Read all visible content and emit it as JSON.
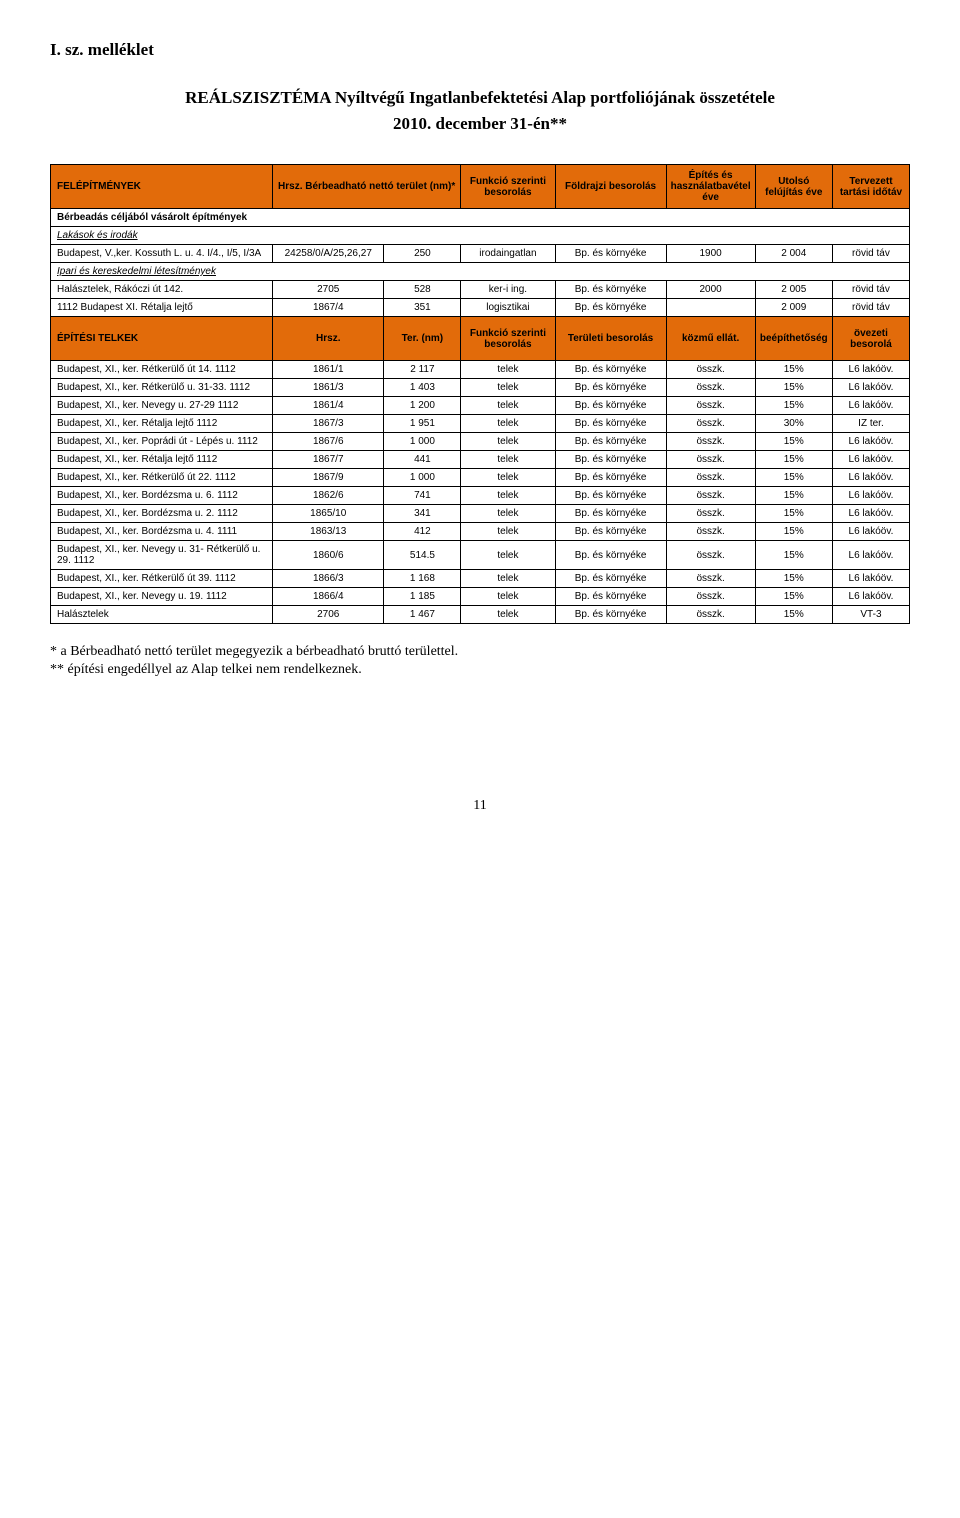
{
  "doc": {
    "header": "I. sz. melléklet",
    "title_line1": "REÁLSZISZTÉMA Nyíltvégű Ingatlanbefektetési Alap portfoliójának összetétele",
    "title_line2": "2010. december 31-én**"
  },
  "colors": {
    "header_bg": "#e26b0a",
    "border": "#000000",
    "text": "#000000",
    "page_bg": "#ffffff"
  },
  "table1": {
    "headers": [
      "FELÉPÍTMÉNYEK",
      "Hrsz. Bérbeadható nettó terület (nm)*",
      "Funkció szerinti besorolás",
      "Földrajzi besorolás",
      "Építés és használatbavétel éve",
      "Utolsó felújítás éve",
      "Tervezett tartási időtáv"
    ],
    "section1": "Bérbeadás céljából vásárolt építmények",
    "section1a": "Lakások és irodák",
    "row1": {
      "name": "Budapest, V.,ker. Kossuth L. u. 4. I/4., I/5, I/3A",
      "hrsz": "24258/0/A/25,26,27",
      "area": "250",
      "func": "irodaingatlan",
      "geo": "Bp. és környéke",
      "year": "1900",
      "renov": "2 004",
      "term": "rövid táv"
    },
    "section1b": "Ipari és kereskedelmi létesítmények",
    "row2": {
      "name": "Halásztelek, Rákóczi út 142.",
      "hrsz": "2705",
      "area": "528",
      "func": "ker-i ing.",
      "geo": "Bp. és környéke",
      "year": "2000",
      "renov": "2 005",
      "term": "rövid táv"
    },
    "row3": {
      "name": "1112 Budapest XI. Rétalja lejtő",
      "hrsz": "1867/4",
      "area": "351",
      "func": "logisztikai",
      "geo": "Bp. és környéke",
      "year": "",
      "renov": "2 009",
      "term": "rövid táv"
    }
  },
  "table2": {
    "headers": [
      "ÉPÍTÉSI TELKEK",
      "Hrsz.",
      "Ter. (nm)",
      "Funkció szerinti besorolás",
      "Területi besorolás",
      "közmű ellát.",
      "beépíthetőség",
      "övezeti besorolá"
    ],
    "rows": [
      {
        "name": "Budapest, XI., ker. Rétkerülő út 14. 1112",
        "hrsz": "1861/1",
        "area": "2 117",
        "func": "telek",
        "geo": "Bp. és környéke",
        "util": "összk.",
        "build": "15%",
        "zone": "L6 lakóöv."
      },
      {
        "name": "Budapest, XI., ker. Rétkerülő u. 31-33. 1112",
        "hrsz": "1861/3",
        "area": "1 403",
        "func": "telek",
        "geo": "Bp. és környéke",
        "util": "összk.",
        "build": "15%",
        "zone": "L6 lakóöv."
      },
      {
        "name": "Budapest, XI., ker. Nevegy u. 27-29 1112",
        "hrsz": "1861/4",
        "area": "1 200",
        "func": "telek",
        "geo": "Bp. és környéke",
        "util": "összk.",
        "build": "15%",
        "zone": "L6 lakóöv."
      },
      {
        "name": "Budapest, XI., ker. Rétalja lejtő 1112",
        "hrsz": "1867/3",
        "area": "1 951",
        "func": "telek",
        "geo": "Bp. és környéke",
        "util": "összk.",
        "build": "30%",
        "zone": "IZ ter."
      },
      {
        "name": "Budapest, XI., ker. Poprádi út - Lépés u. 1112",
        "hrsz": "1867/6",
        "area": "1 000",
        "func": "telek",
        "geo": "Bp. és környéke",
        "util": "összk.",
        "build": "15%",
        "zone": "L6 lakóöv."
      },
      {
        "name": "Budapest, XI., ker. Rétalja lejtő 1112",
        "hrsz": "1867/7",
        "area": "441",
        "func": "telek",
        "geo": "Bp. és környéke",
        "util": "összk.",
        "build": "15%",
        "zone": "L6 lakóöv."
      },
      {
        "name": "Budapest, XI., ker. Rétkerülő út 22. 1112",
        "hrsz": "1867/9",
        "area": "1 000",
        "func": "telek",
        "geo": "Bp. és környéke",
        "util": "összk.",
        "build": "15%",
        "zone": "L6 lakóöv."
      },
      {
        "name": "Budapest, XI., ker. Bordézsma u. 6. 1112",
        "hrsz": "1862/6",
        "area": "741",
        "func": "telek",
        "geo": "Bp. és környéke",
        "util": "összk.",
        "build": "15%",
        "zone": "L6 lakóöv."
      },
      {
        "name": "Budapest, XI., ker. Bordézsma u. 2. 1112",
        "hrsz": "1865/10",
        "area": "341",
        "func": "telek",
        "geo": "Bp. és környéke",
        "util": "összk.",
        "build": "15%",
        "zone": "L6 lakóöv."
      },
      {
        "name": "Budapest, XI., ker. Bordézsma u. 4. 1111",
        "hrsz": "1863/13",
        "area": "412",
        "func": "telek",
        "geo": "Bp. és környéke",
        "util": "összk.",
        "build": "15%",
        "zone": "L6 lakóöv."
      },
      {
        "name": "Budapest, XI., ker. Nevegy u. 31- Rétkerülő u. 29. 1112",
        "hrsz": "1860/6",
        "area": "514.5",
        "func": "telek",
        "geo": "Bp. és környéke",
        "util": "összk.",
        "build": "15%",
        "zone": "L6 lakóöv."
      },
      {
        "name": "Budapest, XI., ker. Rétkerülő út 39. 1112",
        "hrsz": "1866/3",
        "area": "1 168",
        "func": "telek",
        "geo": "Bp. és környéke",
        "util": "összk.",
        "build": "15%",
        "zone": "L6 lakóöv."
      },
      {
        "name": "Budapest, XI., ker. Nevegy u. 19. 1112",
        "hrsz": "1866/4",
        "area": "1 185",
        "func": "telek",
        "geo": "Bp. és környéke",
        "util": "összk.",
        "build": "15%",
        "zone": "L6 lakóöv."
      },
      {
        "name": "Halásztelek",
        "hrsz": "2706",
        "area": "1 467",
        "func": "telek",
        "geo": "Bp. és környéke",
        "util": "összk.",
        "build": "15%",
        "zone": "VT-3"
      }
    ]
  },
  "notes": {
    "line1": "* a Bérbeadható nettó terület megegyezik a bérbeadható bruttó területtel.",
    "line2": "** építési engedéllyel az Alap telkei nem rendelkeznek."
  },
  "page_number": "11"
}
